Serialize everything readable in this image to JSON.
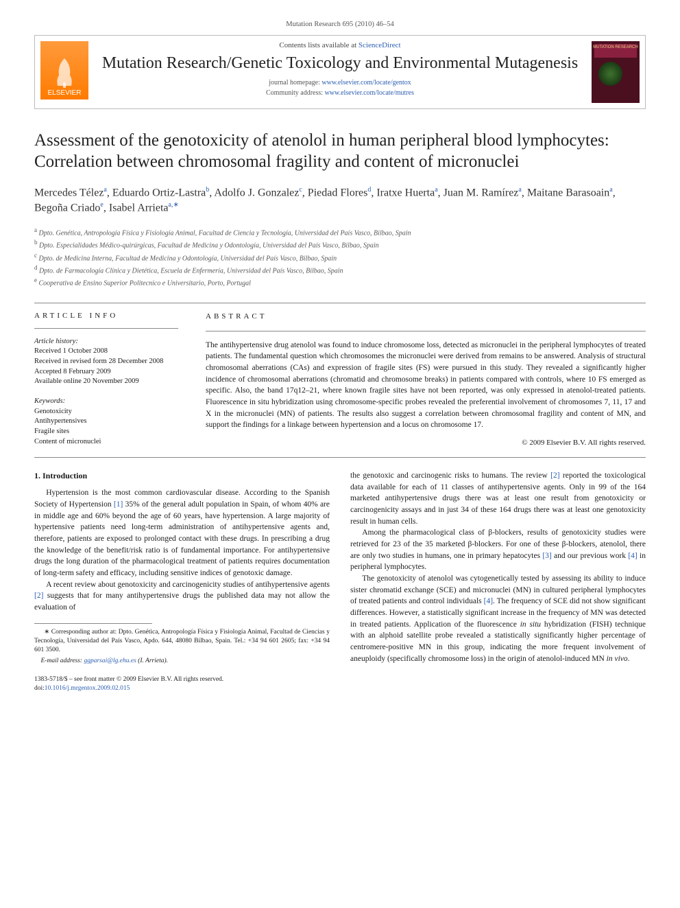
{
  "issue_line": "Mutation Research 695 (2010) 46–54",
  "header": {
    "contents_prefix": "Contents lists available at ",
    "contents_link": "ScienceDirect",
    "journal_title": "Mutation Research/Genetic Toxicology and Environmental Mutagenesis",
    "homepage_label": "journal homepage: ",
    "homepage_url": "www.elsevier.com/locate/gentox",
    "community_label": "Community address: ",
    "community_url": "www.elsevier.com/locate/mutres",
    "publisher_name": "ELSEVIER",
    "cover_label": "MUTATION RESEARCH"
  },
  "article": {
    "title": "Assessment of the genotoxicity of atenolol in human peripheral blood lymphocytes: Correlation between chromosomal fragility and content of micronuclei",
    "authors_html": "Mercedes Télez<sup>a</sup>, Eduardo Ortiz-Lastra<sup>b</sup>, Adolfo J. Gonzalez<sup>c</sup>, Piedad Flores<sup>d</sup>, Iratxe Huerta<sup>a</sup>, Juan M. Ramírez<sup>a</sup>, Maitane Barasoain<sup>a</sup>, Begoña Criado<sup>e</sup>, Isabel Arrieta<sup>a,∗</sup>",
    "affiliations": [
      {
        "sup": "a",
        "text": "Dpto. Genética, Antropología Física y Fisiología Animal, Facultad de Ciencia y Tecnología, Universidad del País Vasco, Bilbao, Spain"
      },
      {
        "sup": "b",
        "text": "Dpto. Especialidades Médico-quirúrgicas, Facultad de Medicina y Odontología, Universidad del País Vasco, Bilbao, Spain"
      },
      {
        "sup": "c",
        "text": "Dpto. de Medicina Interna, Facultad de Medicina y Odontología, Universidad del País Vasco, Bilbao, Spain"
      },
      {
        "sup": "d",
        "text": "Dpto. de Farmacología Clínica y Dietética, Escuela de Enfermería, Universidad del País Vasco, Bilbao, Spain"
      },
      {
        "sup": "e",
        "text": "Cooperativa de Ensino Superior Politecnico e Universitario, Porto, Portugal"
      }
    ]
  },
  "info": {
    "section_label": "article info",
    "history_label": "Article history:",
    "received": "Received 1 October 2008",
    "revised": "Received in revised form 28 December 2008",
    "accepted": "Accepted 8 February 2009",
    "online": "Available online 20 November 2009",
    "keywords_label": "Keywords:",
    "keywords": [
      "Genotoxicity",
      "Antihypertensives",
      "Fragile sites",
      "Content of micronuclei"
    ]
  },
  "abstract": {
    "section_label": "abstract",
    "text": "The antihypertensive drug atenolol was found to induce chromosome loss, detected as micronuclei in the peripheral lymphocytes of treated patients. The fundamental question which chromosomes the micronuclei were derived from remains to be answered. Analysis of structural chromosomal aberrations (CAs) and expression of fragile sites (FS) were pursued in this study. They revealed a significantly higher incidence of chromosomal aberrations (chromatid and chromosome breaks) in patients compared with controls, where 10 FS emerged as specific. Also, the band 17q12–21, where known fragile sites have not been reported, was only expressed in atenolol-treated patients. Fluorescence in situ hybridization using chromosome-specific probes revealed the preferential involvement of chromosomes 7, 11, 17 and X in the micronuclei (MN) of patients. The results also suggest a correlation between chromosomal fragility and content of MN, and support the findings for a linkage between hypertension and a locus on chromosome 17.",
    "copyright": "© 2009 Elsevier B.V. All rights reserved."
  },
  "body": {
    "intro_heading": "1. Introduction",
    "paragraphs_col1": [
      "Hypertension is the most common cardiovascular disease. According to the Spanish Society of Hypertension [1] 35% of the general adult population in Spain, of whom 40% are in middle age and 60% beyond the age of 60 years, have hypertension. A large majority of hypertensive patients need long-term administration of antihypertensive agents and, therefore, patients are exposed to prolonged contact with these drugs. In prescribing a drug the knowledge of the benefit/risk ratio is of fundamental importance. For antihypertensive drugs the long duration of the pharmacological treatment of patients requires documentation of long-term safety and efficacy, including sensitive indices of genotoxic damage.",
      "A recent review about genotoxicity and carcinogenicity studies of antihypertensive agents [2] suggests that for many antihypertensive drugs the published data may not allow the evaluation of"
    ],
    "paragraphs_col2": [
      "the genotoxic and carcinogenic risks to humans. The review [2] reported the toxicological data available for each of 11 classes of antihypertensive agents. Only in 99 of the 164 marketed antihypertensive drugs there was at least one result from genotoxicity or carcinogenicity assays and in just 34 of these 164 drugs there was at least one genotoxicity result in human cells.",
      "Among the pharmacological class of β-blockers, results of genotoxicity studies were retrieved for 23 of the 35 marketed β-blockers. For one of these β-blockers, atenolol, there are only two studies in humans, one in primary hepatocytes [3] and our previous work [4] in peripheral lymphocytes.",
      "The genotoxicity of atenolol was cytogenetically tested by assessing its ability to induce sister chromatid exchange (SCE) and micronuclei (MN) in cultured peripheral lymphocytes of treated patients and control individuals [4]. The frequency of SCE did not show significant differences. However, a statistically significant increase in the frequency of MN was detected in treated patients. Application of the fluorescence in situ hybridization (FISH) technique with an alphoid satellite probe revealed a statistically significantly higher percentage of centromere-positive MN in this group, indicating the more frequent involvement of aneuploidy (specifically chromosome loss) in the origin of atenolol-induced MN in vivo."
    ]
  },
  "footnote": {
    "corr": "∗ Corresponding author at: Dpto. Genética, Antropología Física y Fisiología Animal, Facultad de Ciencias y Tecnología, Universidad del País Vasco, Apdo. 644, 48080 Bilbao, Spain. Tel.: +34 94 601 2605; fax: +34 94 601 3500.",
    "email_label": "E-mail address: ",
    "email": "ggparsai@lg.ehu.es",
    "email_person": "(I. Arrieta)."
  },
  "footer": {
    "issn": "1383-5718/$ – see front matter © 2009 Elsevier B.V. All rights reserved.",
    "doi_label": "doi:",
    "doi": "10.1016/j.mrgentox.2009.02.015"
  },
  "refs": {
    "1": "[1]",
    "2": "[2]",
    "3": "[3]",
    "4": "[4]"
  },
  "colors": {
    "link": "#2a5db0",
    "text": "#1a1a1a",
    "rule": "#888888",
    "logo_bg": "#ff7b00",
    "cover_bg": "#4a1020"
  }
}
